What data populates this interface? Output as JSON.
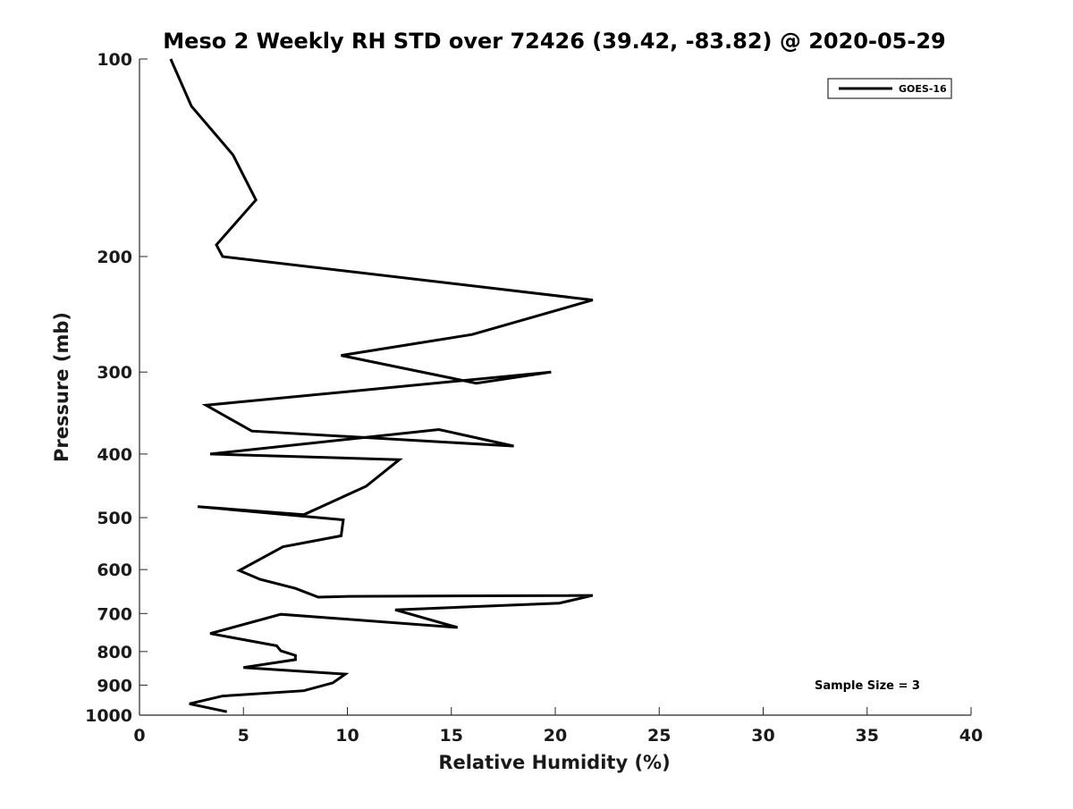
{
  "chart_data": {
    "type": "line",
    "title": "Meso 2 Weekly RH STD over 72426 (39.42, -83.82) @ 2020-05-29",
    "xlabel": "Relative Humidity (%)",
    "ylabel": "Pressure (mb)",
    "xlim": [
      0,
      40
    ],
    "ylim": [
      1000,
      100
    ],
    "y_scale": "log",
    "x_ticks": [
      "0",
      "5",
      "10",
      "15",
      "20",
      "25",
      "30",
      "35",
      "40"
    ],
    "y_ticks": [
      "100",
      "200",
      "300",
      "400",
      "500",
      "600",
      "700",
      "800",
      "900",
      "1000"
    ],
    "grid": false,
    "legend_position": "top-right",
    "annotation": "Sample Size = 3",
    "series": [
      {
        "name": "GOES-16",
        "color": "#000000",
        "x": [
          1.5,
          2.5,
          4.5,
          5.6,
          3.7,
          4.0,
          21.8,
          16.0,
          9.7,
          16.2,
          19.8,
          3.2,
          5.4,
          18.0,
          14.4,
          3.4,
          12.5,
          10.9,
          7.9,
          2.8,
          9.8,
          9.7,
          6.9,
          4.8,
          5.8,
          7.5,
          8.6,
          10.1,
          21.8,
          20.2,
          12.3,
          15.3,
          6.8,
          3.4,
          6.6,
          6.8,
          7.5,
          7.5,
          5.0,
          9.9,
          9.3,
          7.9,
          4.0,
          2.4,
          4.2
        ],
        "y": [
          100,
          118,
          140,
          164,
          192,
          200,
          233,
          263,
          283,
          312,
          300,
          337,
          369,
          389,
          367,
          400,
          408,
          448,
          495,
          481,
          504,
          533,
          554,
          602,
          621,
          641,
          661,
          659,
          657,
          675,
          691,
          735,
          702,
          751,
          784,
          798,
          811,
          823,
          846,
          866,
          893,
          918,
          935,
          961,
          988
        ]
      }
    ]
  }
}
